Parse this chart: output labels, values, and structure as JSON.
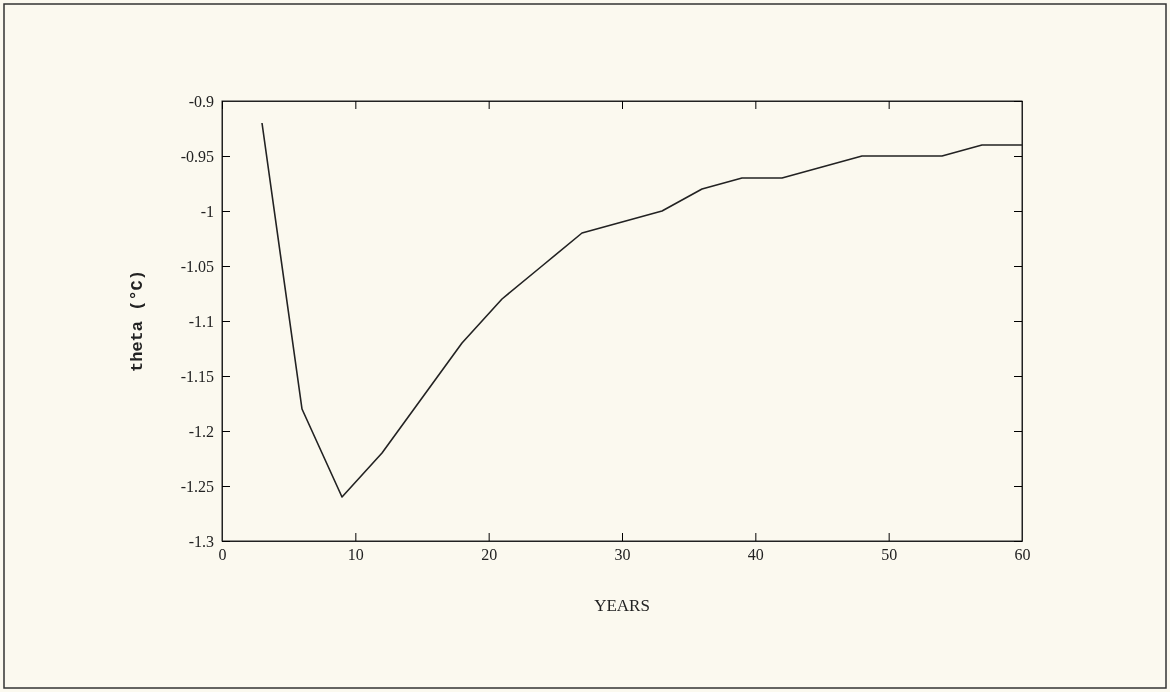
{
  "chart_data": {
    "type": "line",
    "xlabel": "YEARS",
    "ylabel": "theta (°C)",
    "x": [
      3,
      6,
      9,
      12,
      15,
      18,
      21,
      24,
      27,
      30,
      33,
      36,
      39,
      42,
      45,
      48,
      51,
      54,
      57,
      60
    ],
    "series": [
      {
        "color": "#222222",
        "values": [
          -0.92,
          -1.18,
          -1.26,
          -1.22,
          -1.17,
          -1.12,
          -1.08,
          -1.05,
          -1.02,
          -1.01,
          -1.0,
          -0.98,
          -0.97,
          -0.97,
          -0.96,
          -0.95,
          -0.95,
          -0.95,
          -0.94,
          -0.94
        ]
      }
    ],
    "xlim": [
      0,
      60
    ],
    "xticks": [
      0,
      10,
      20,
      30,
      40,
      50,
      60
    ],
    "ylim": [
      -1.3,
      -0.9
    ],
    "yticks": [
      -1.3,
      -1.25,
      -1.2,
      -1.15,
      -1.1,
      -1.05,
      -1,
      -0.95,
      -0.9
    ],
    "grid": false,
    "marker": "none",
    "line_style": "solid"
  }
}
